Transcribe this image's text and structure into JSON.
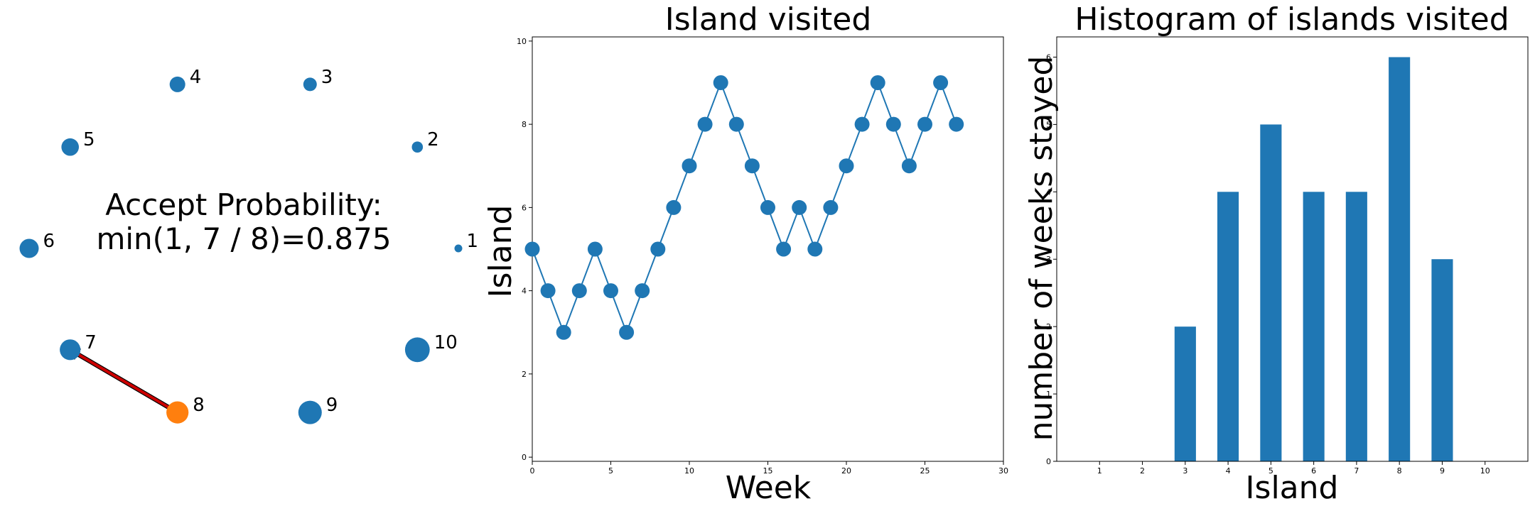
{
  "colors": {
    "blue": "#1f77b4",
    "orange": "#ff7f0e",
    "arrow_fill": "#cc0000",
    "arrow_edge": "#000000"
  },
  "chart_data": [
    {
      "type": "scatter",
      "panel": "islands",
      "islands": [
        {
          "label": "1",
          "size": 1,
          "current": false
        },
        {
          "label": "2",
          "size": 2,
          "current": false
        },
        {
          "label": "3",
          "size": 3,
          "current": false
        },
        {
          "label": "4",
          "size": 4,
          "current": false
        },
        {
          "label": "5",
          "size": 5,
          "current": false
        },
        {
          "label": "6",
          "size": 6,
          "current": false
        },
        {
          "label": "7",
          "size": 7,
          "current": false
        },
        {
          "label": "8",
          "size": 8,
          "current": true
        },
        {
          "label": "9",
          "size": 9,
          "current": false
        },
        {
          "label": "10",
          "size": 10,
          "current": false
        }
      ],
      "arrow": {
        "from": "8",
        "to": "7"
      },
      "annotation_line1": "Accept Probability:",
      "annotation_line2": "min(1, 7 / 8)=0.875"
    },
    {
      "type": "line",
      "panel": "trace",
      "title": "Island visited",
      "xlabel": "Week",
      "ylabel": "Island",
      "xlim": [
        0,
        30
      ],
      "ylim": [
        -0.1,
        10.1
      ],
      "xticks": [
        0,
        5,
        10,
        15,
        20,
        25,
        30
      ],
      "yticks": [
        0,
        2,
        4,
        6,
        8,
        10
      ],
      "x": [
        0,
        1,
        2,
        3,
        4,
        5,
        6,
        7,
        8,
        9,
        10,
        11,
        12,
        13,
        14,
        15,
        16,
        17,
        18,
        19,
        20,
        21,
        22,
        23,
        24,
        25,
        26,
        27
      ],
      "y": [
        5,
        4,
        3,
        4,
        5,
        4,
        3,
        4,
        5,
        6,
        7,
        8,
        9,
        8,
        7,
        6,
        5,
        6,
        5,
        6,
        7,
        8,
        9,
        8,
        7,
        8,
        9,
        8
      ]
    },
    {
      "type": "bar",
      "panel": "histogram",
      "title": "Histogram of islands visited",
      "xlabel": "Island",
      "ylabel": "number of weeks stayed",
      "categories": [
        "1",
        "2",
        "3",
        "4",
        "5",
        "6",
        "7",
        "8",
        "9",
        "10"
      ],
      "values": [
        0,
        0,
        2,
        4,
        5,
        4,
        4,
        6,
        3,
        0
      ],
      "ylim": [
        0,
        6.3
      ],
      "yticks": [
        0,
        1,
        2,
        3,
        4,
        5,
        6
      ]
    }
  ]
}
